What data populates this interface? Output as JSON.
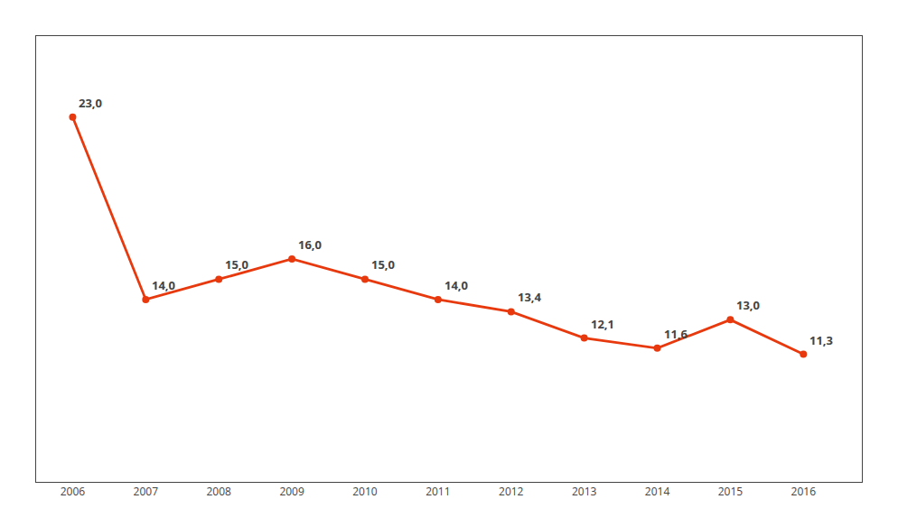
{
  "chart_data": {
    "type": "line",
    "x": [
      2006,
      2007,
      2008,
      2009,
      2010,
      2011,
      2012,
      2013,
      2014,
      2015,
      2016
    ],
    "series": [
      {
        "values": [
          23.0,
          14.0,
          15.0,
          16.0,
          15.0,
          14.0,
          13.4,
          12.1,
          11.6,
          13.0,
          11.3
        ],
        "value_labels": [
          "23,0",
          "14,0",
          "15,0",
          "16,0",
          "15,0",
          "14,0",
          "13,4",
          "12,1",
          "11,6",
          "13,0",
          "11,3"
        ],
        "color": "#e8390e"
      }
    ],
    "xlim": [
      2005.5,
      2016.8
    ],
    "ylim": [
      5,
      27
    ],
    "xticks": [
      2006,
      2007,
      2008,
      2009,
      2010,
      2011,
      2012,
      2013,
      2014,
      2015,
      2016
    ],
    "grid": false,
    "data_labels": true,
    "tick_labels": "x",
    "marker": "circle",
    "line_style": "solid"
  }
}
